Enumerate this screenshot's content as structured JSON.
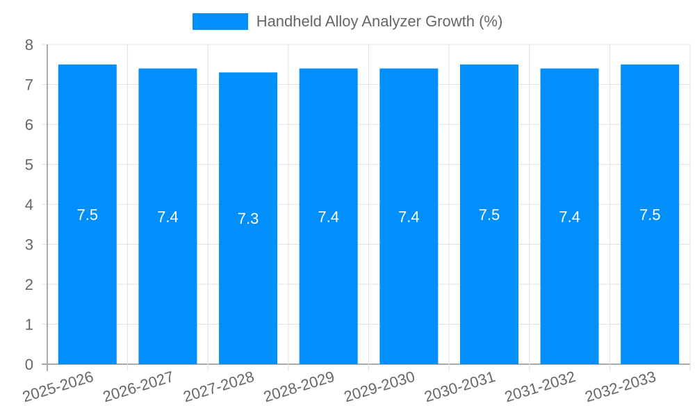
{
  "legend": {
    "label": "Handheld Alloy Analyzer Growth (%)",
    "color": "#0190fb"
  },
  "chart_data": {
    "type": "bar",
    "title": "",
    "categories": [
      "2025-2026",
      "2026-2027",
      "2027-2028",
      "2028-2029",
      "2029-2030",
      "2030-2031",
      "2031-2032",
      "2032-2033"
    ],
    "series": [
      {
        "name": "Handheld Alloy Analyzer Growth (%)",
        "values": [
          7.5,
          7.4,
          7.3,
          7.4,
          7.4,
          7.5,
          7.4,
          7.5
        ],
        "color": "#0190fb"
      }
    ],
    "xlabel": "",
    "ylabel": "",
    "ylim": [
      0,
      8
    ],
    "yticks": [
      0,
      1,
      2,
      3,
      4,
      5,
      6,
      7,
      8
    ],
    "grid": true,
    "legend_position": "top",
    "data_labels": true
  }
}
